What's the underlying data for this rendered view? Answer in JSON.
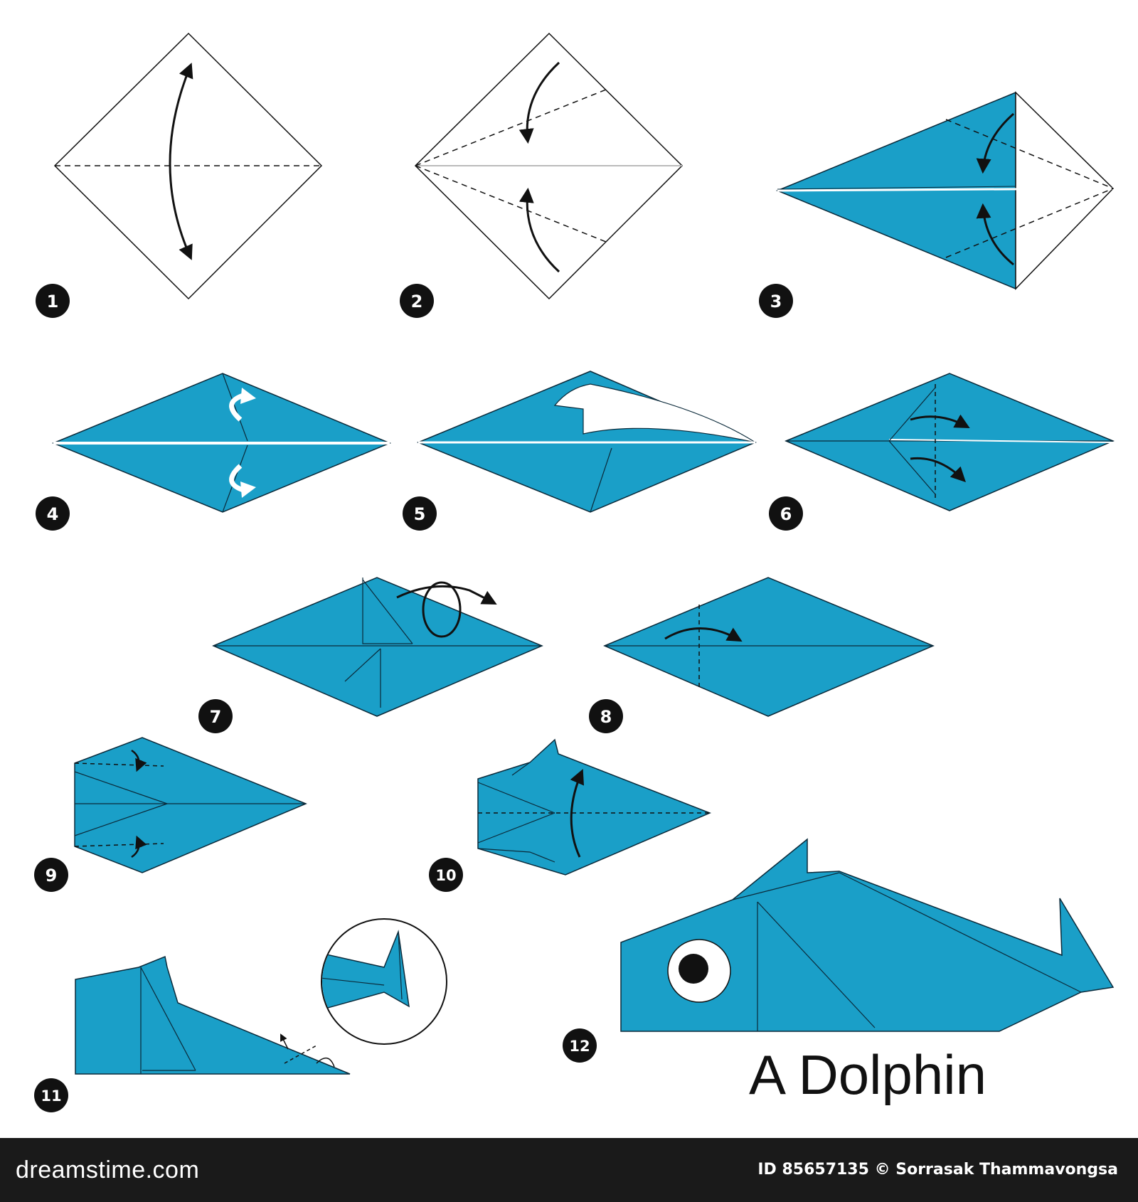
{
  "title": "A Dolphin",
  "steps": [
    "1",
    "2",
    "3",
    "4",
    "5",
    "6",
    "7",
    "8",
    "9",
    "10",
    "11",
    "12"
  ],
  "footer": {
    "brand": "dreamstime.com",
    "credit": "ID 85657135 © Sorrasak Thammavongsa"
  },
  "colors": {
    "paper": "#1a9fc8",
    "paper_dark": "#1589b0",
    "line": "#0b2a3a",
    "arrow": "#111111",
    "badge": "#111111",
    "footer": "#1a1a1a"
  }
}
